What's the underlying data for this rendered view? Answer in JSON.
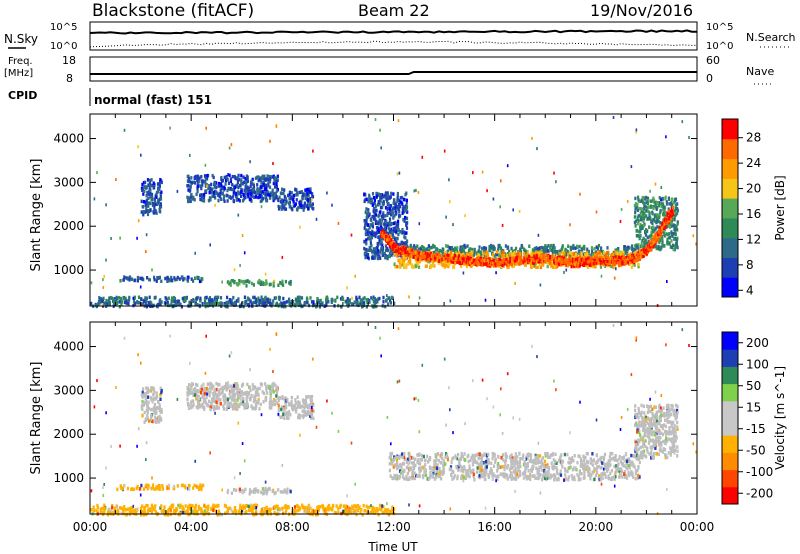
{
  "header": {
    "station": "Blackstone (fitACF)",
    "beam": "Beam 22",
    "date": "19/Nov/2016"
  },
  "top_panels": {
    "nsky_label": "N.Sky",
    "nsky_ticks": [
      "10^5",
      "10^0"
    ],
    "nsearch_label": "N.Search",
    "nsearch_ticks": [
      "10^5",
      "10^0"
    ],
    "freq_label_1": "Freq.",
    "freq_label_2": "[MHz]",
    "freq_ticks": [
      "18",
      "8"
    ],
    "nave_label": "Nave",
    "nave_ticks": [
      "60",
      "0"
    ],
    "cpid_label": "CPID",
    "cpid_value": "normal (fast) 151"
  },
  "colors": {
    "power_scale": [
      "#0000ff",
      "#1e3fb4",
      "#2d6a8a",
      "#2e8b57",
      "#57a957",
      "#f5c518",
      "#ff9a00",
      "#ff6a00",
      "#ff0000"
    ],
    "velocity_scale": [
      "#ff0000",
      "#ff4500",
      "#ff8c00",
      "#ffb000",
      "#c8c8c8",
      "#c8c8c8",
      "#7fd04b",
      "#2e8b57",
      "#1e3fb4",
      "#0000ff"
    ],
    "ground_scatter": "#bebebe",
    "trace": "#000000"
  },
  "chart_data": [
    {
      "type": "heatmap",
      "name": "Power",
      "ylabel": "Slant Range [km]",
      "yticks": [
        1000,
        2000,
        3000,
        4000
      ],
      "ylim": [
        180,
        4560
      ],
      "xlim": [
        0,
        24
      ],
      "colorbar": {
        "label": "Power [dB]",
        "ticks": [
          28,
          24,
          20,
          16,
          12,
          8,
          4
        ],
        "range": [
          0,
          30
        ]
      },
      "regions": [
        {
          "x": [
            2.0,
            2.8
          ],
          "y": [
            2300,
            3100
          ],
          "level": 6
        },
        {
          "x": [
            3.8,
            7.4
          ],
          "y": [
            2600,
            3200
          ],
          "level": 6
        },
        {
          "x": [
            7.4,
            8.8
          ],
          "y": [
            2400,
            2900
          ],
          "level": 6
        },
        {
          "x": [
            1.0,
            4.5
          ],
          "y": [
            780,
            880
          ],
          "level": 7
        },
        {
          "x": [
            5.4,
            7.9
          ],
          "y": [
            680,
            800
          ],
          "level": 13
        },
        {
          "x": [
            0.0,
            12.0
          ],
          "y": [
            200,
            420
          ],
          "level": 8
        },
        {
          "x": [
            10.8,
            12.5
          ],
          "y": [
            1300,
            2800
          ],
          "level": 6
        },
        {
          "x": [
            11.8,
            21.7
          ],
          "y": [
            1350,
            1600
          ],
          "level": 10
        },
        {
          "x": [
            12.0,
            21.7
          ],
          "y": [
            1100,
            1450
          ],
          "level": 20
        },
        {
          "x": [
            21.5,
            23.2
          ],
          "y": [
            1500,
            2700
          ],
          "level": 11
        }
      ],
      "trend": {
        "x": [
          11.5,
          12.0,
          13.0,
          14.0,
          15.0,
          16.0,
          17.0,
          18.0,
          19.0,
          20.0,
          21.0,
          21.5,
          22.0,
          22.5,
          23.0
        ],
        "y": [
          1900,
          1550,
          1350,
          1300,
          1250,
          1200,
          1250,
          1300,
          1200,
          1250,
          1250,
          1300,
          1500,
          1900,
          2400
        ]
      }
    },
    {
      "type": "heatmap",
      "name": "Velocity",
      "ylabel": "Slant Range [km]",
      "xlabel": "Time UT",
      "xticks": [
        "00:00",
        "04:00",
        "08:00",
        "12:00",
        "16:00",
        "20:00",
        "00:00"
      ],
      "yticks": [
        1000,
        2000,
        3000,
        4000
      ],
      "ylim": [
        180,
        4560
      ],
      "xlim": [
        0,
        24
      ],
      "colorbar": {
        "label": "Velocity [m s^-1]",
        "ticks": [
          "200",
          "100",
          "50",
          "15",
          "-15",
          "-50",
          "-100",
          "-200"
        ],
        "range": [
          -250,
          250
        ]
      },
      "regions": [
        {
          "x": [
            2.0,
            2.8
          ],
          "y": [
            2300,
            3100
          ],
          "v": 0
        },
        {
          "x": [
            3.8,
            7.4
          ],
          "y": [
            2600,
            3200
          ],
          "v": 0
        },
        {
          "x": [
            7.4,
            8.8
          ],
          "y": [
            2400,
            2900
          ],
          "v": 0
        },
        {
          "x": [
            1.0,
            4.5
          ],
          "y": [
            780,
            880
          ],
          "v": -60
        },
        {
          "x": [
            5.4,
            7.9
          ],
          "y": [
            680,
            800
          ],
          "v": 0
        },
        {
          "x": [
            0.0,
            12.0
          ],
          "y": [
            200,
            420
          ],
          "v": -60
        },
        {
          "x": [
            11.8,
            21.7
          ],
          "y": [
            1000,
            1600
          ],
          "v": 0
        },
        {
          "x": [
            21.5,
            23.2
          ],
          "y": [
            1500,
            2700
          ],
          "v": 0
        }
      ]
    }
  ]
}
